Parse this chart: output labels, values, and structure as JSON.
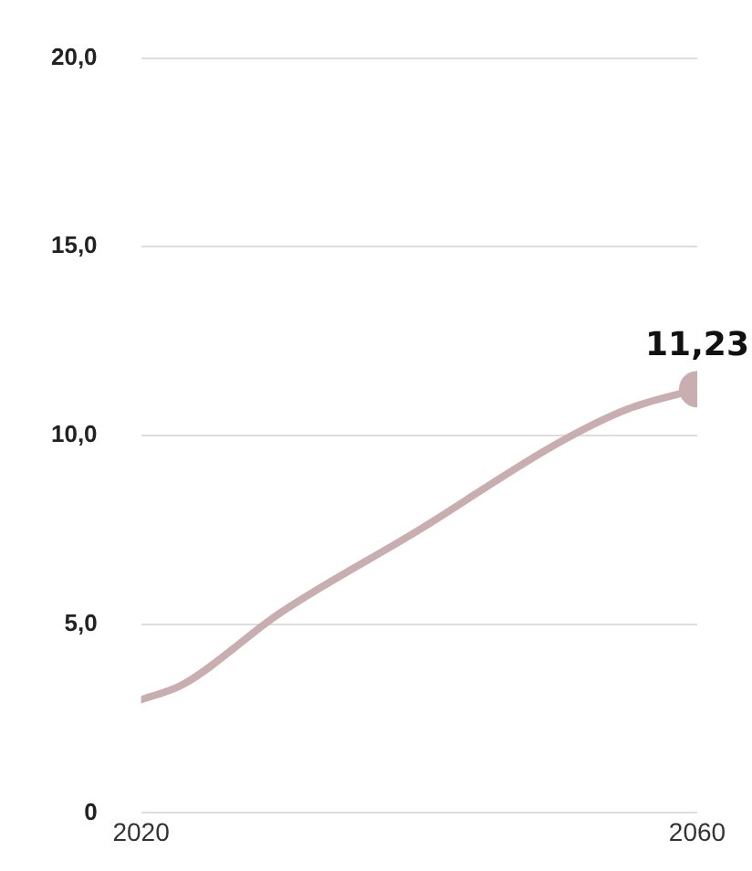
{
  "chart_data": {
    "type": "line",
    "x": [
      2020,
      2023,
      2030,
      2040,
      2050,
      2055,
      2060
    ],
    "series": [
      {
        "color": "#c9aeb1",
        "values": [
          3.0,
          3.4,
          5.3,
          7.5,
          9.8,
          10.7,
          11.23
        ],
        "value_labels": [
          null,
          null,
          null,
          null,
          null,
          null,
          "11,23"
        ]
      }
    ],
    "xlim": [
      2020,
      2060
    ],
    "xticks": [
      2020,
      2060
    ],
    "ylim": [
      0,
      20
    ],
    "yticks": [
      0,
      {
        "value": 5,
        "label": "5,0"
      },
      {
        "value": 10,
        "label": "10,0"
      },
      {
        "value": 15,
        "label": "15,0"
      },
      {
        "value": 20,
        "label": "20,0"
      }
    ],
    "grid": "y",
    "legend": false,
    "marker": "none",
    "line_style": "solid"
  }
}
